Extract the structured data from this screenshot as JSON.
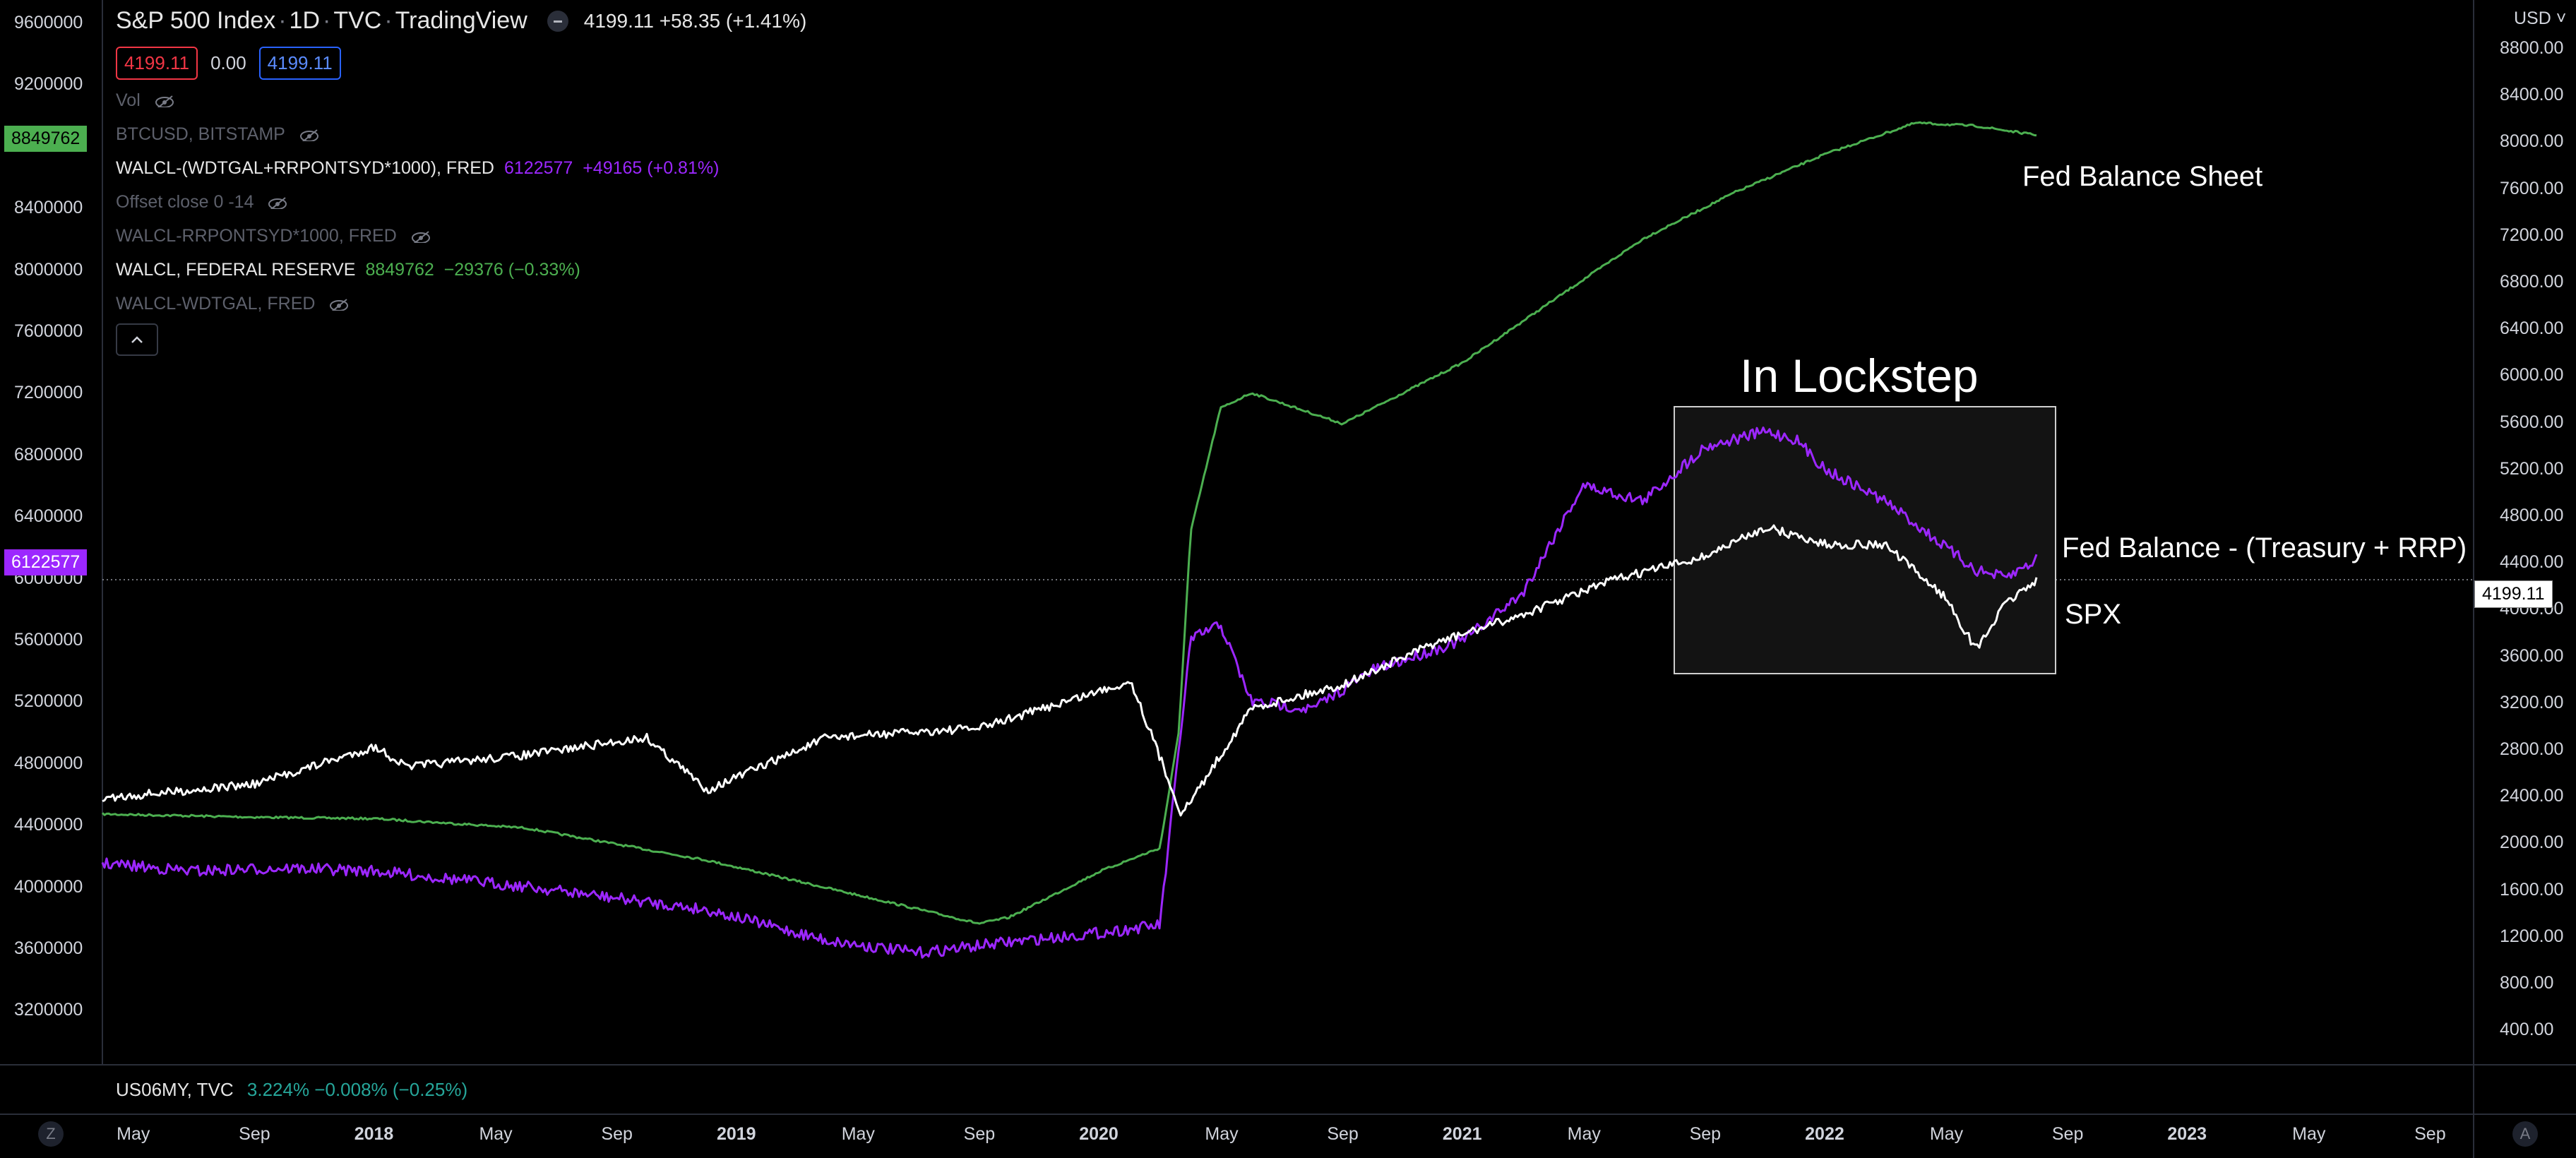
{
  "header": {
    "symbol": "S&P 500 Index",
    "interval": "1D",
    "exchange": "TVC",
    "source": "TradingView",
    "last": "4199.11",
    "change": "+58.35 (+1.41%)",
    "sell_price": "4199.11",
    "spread": "0.00",
    "buy_price": "4199.11"
  },
  "legend": [
    {
      "text": "Vol",
      "value": "",
      "dim": true,
      "eye": true
    },
    {
      "text": "BTCUSD, BITSTAMP",
      "value": "",
      "dim": true,
      "eye": true
    },
    {
      "text": "WALCL-(WDTGAL+RRPONTSYD*1000), FRED",
      "value": "6122577  +49165 (+0.81%)",
      "dim": false,
      "eye": false,
      "value_color": "#9c27ff"
    },
    {
      "text": "Offset close 0 -14",
      "value": "",
      "dim": true,
      "eye": true
    },
    {
      "text": "WALCL-RRPONTSYD*1000, FRED",
      "value": "",
      "dim": true,
      "eye": true
    },
    {
      "text": "WALCL, FEDERAL RESERVE",
      "value": "8849762  −29376 (−0.33%)",
      "dim": false,
      "eye": false,
      "value_color": "#4caf50"
    },
    {
      "text": "WALCL-WDTGAL, FRED",
      "value": "",
      "dim": true,
      "eye": true
    }
  ],
  "left_axis": {
    "ticks": [
      "9600000",
      "9200000",
      "8400000",
      "8000000",
      "7600000",
      "7200000",
      "6800000",
      "6400000",
      "6000000",
      "5600000",
      "5200000",
      "4800000",
      "4400000",
      "4000000",
      "3600000",
      "3200000"
    ],
    "tags": {
      "green": "8849762",
      "purple": "6122577"
    }
  },
  "right_axis": {
    "currency": "USD",
    "ticks": [
      "8800.00",
      "8400.00",
      "8000.00",
      "7600.00",
      "7200.00",
      "6800.00",
      "6400.00",
      "6000.00",
      "5600.00",
      "5200.00",
      "4800.00",
      "4400.00",
      "4000.00",
      "3600.00",
      "3200.00",
      "2800.00",
      "2400.00",
      "2000.00",
      "1600.00",
      "1200.00",
      "800.00",
      "400.00"
    ],
    "last_tag": "4199.11"
  },
  "time_axis": [
    {
      "label": "May",
      "bold": false
    },
    {
      "label": "Sep",
      "bold": false
    },
    {
      "label": "2018",
      "bold": true
    },
    {
      "label": "May",
      "bold": false
    },
    {
      "label": "Sep",
      "bold": false
    },
    {
      "label": "2019",
      "bold": true
    },
    {
      "label": "May",
      "bold": false
    },
    {
      "label": "Sep",
      "bold": false
    },
    {
      "label": "2020",
      "bold": true
    },
    {
      "label": "May",
      "bold": false
    },
    {
      "label": "Sep",
      "bold": false
    },
    {
      "label": "2021",
      "bold": true
    },
    {
      "label": "May",
      "bold": false
    },
    {
      "label": "Sep",
      "bold": false
    },
    {
      "label": "2022",
      "bold": true
    },
    {
      "label": "May",
      "bold": false
    },
    {
      "label": "Sep",
      "bold": false
    },
    {
      "label": "2023",
      "bold": true
    },
    {
      "label": "May",
      "bold": false
    },
    {
      "label": "Sep",
      "bold": false
    }
  ],
  "annotations": {
    "box_title": "In Lockstep",
    "fed_balance_sheet": "Fed Balance Sheet",
    "fed_net": "Fed Balance - (Treasury + RRP)",
    "spx": "SPX"
  },
  "bottom_pane": {
    "symbol": "US06MY, TVC",
    "value": "3.224%  −0.008% (−0.25%)"
  },
  "corner_buttons": {
    "left": "Z",
    "right": "A"
  },
  "colors": {
    "fed_balance_sheet": "#4caf50",
    "fed_net": "#9c27ff",
    "spx": "#ffffff",
    "background": "#000000"
  },
  "chart_data": {
    "type": "line",
    "title": "",
    "x_unit": "date",
    "left_axis_range": [
      3000000,
      9600000
    ],
    "right_axis_range": [
      200,
      9000
    ],
    "series": [
      {
        "name": "Fed Balance Sheet",
        "axis": "left",
        "x": [
          "2017-04",
          "2017-09",
          "2018-01",
          "2018-06",
          "2018-12",
          "2019-06",
          "2019-09",
          "2019-10",
          "2020-01",
          "2020-03",
          "2020-03-20",
          "2020-04",
          "2020-05",
          "2020-06",
          "2020-09",
          "2021-01",
          "2021-04",
          "2021-07",
          "2021-10",
          "2022-01",
          "2022-04",
          "2022-06",
          "2022-08"
        ],
        "values": [
          4470000,
          4450000,
          4440000,
          4380000,
          4170000,
          3900000,
          3760000,
          3800000,
          4100000,
          4250000,
          5000000,
          6300000,
          7100000,
          7200000,
          7000000,
          7400000,
          7800000,
          8200000,
          8500000,
          8750000,
          8950000,
          8930000,
          8870000
        ]
      },
      {
        "name": "Fed Balance - (Treasury + RRP)",
        "axis": "left",
        "x": [
          "2017-04",
          "2017-07",
          "2017-10",
          "2018-01",
          "2018-06",
          "2018-12",
          "2019-04",
          "2019-07",
          "2019-10",
          "2020-01",
          "2020-03",
          "2020-04",
          "2020-05",
          "2020-06",
          "2020-08",
          "2020-10",
          "2021-01",
          "2021-03",
          "2021-05",
          "2021-07",
          "2021-09",
          "2021-11",
          "2021-12",
          "2022-01",
          "2022-03",
          "2022-04",
          "2022-05",
          "2022-06",
          "2022-07",
          "2022-08"
        ],
        "values": [
          4150000,
          4100000,
          4120000,
          4100000,
          4000000,
          3850000,
          3650000,
          3570000,
          3640000,
          3700000,
          3750000,
          5600000,
          5700000,
          5200000,
          5150000,
          5400000,
          5600000,
          5900000,
          6600000,
          6500000,
          6850000,
          6950000,
          6900000,
          6700000,
          6500000,
          6350000,
          6200000,
          6050000,
          6000000,
          6120000
        ]
      },
      {
        "name": "SPX",
        "axis": "right",
        "x": [
          "2017-04",
          "2017-09",
          "2018-01",
          "2018-02",
          "2018-06",
          "2018-10",
          "2018-12",
          "2019-04",
          "2019-09",
          "2020-01",
          "2020-02",
          "2020-03-23",
          "2020-06",
          "2020-09",
          "2020-12",
          "2021-03",
          "2021-06",
          "2021-09",
          "2021-11",
          "2022-01",
          "2022-03",
          "2022-05",
          "2022-06",
          "2022-07",
          "2022-08"
        ],
        "values": [
          2380,
          2500,
          2820,
          2650,
          2750,
          2900,
          2450,
          2900,
          2980,
          3300,
          3380,
          2240,
          3150,
          3350,
          3700,
          3950,
          4250,
          4450,
          4700,
          4550,
          4550,
          4100,
          3650,
          4050,
          4250
        ]
      }
    ],
    "legend": "top-left",
    "grid": false
  }
}
